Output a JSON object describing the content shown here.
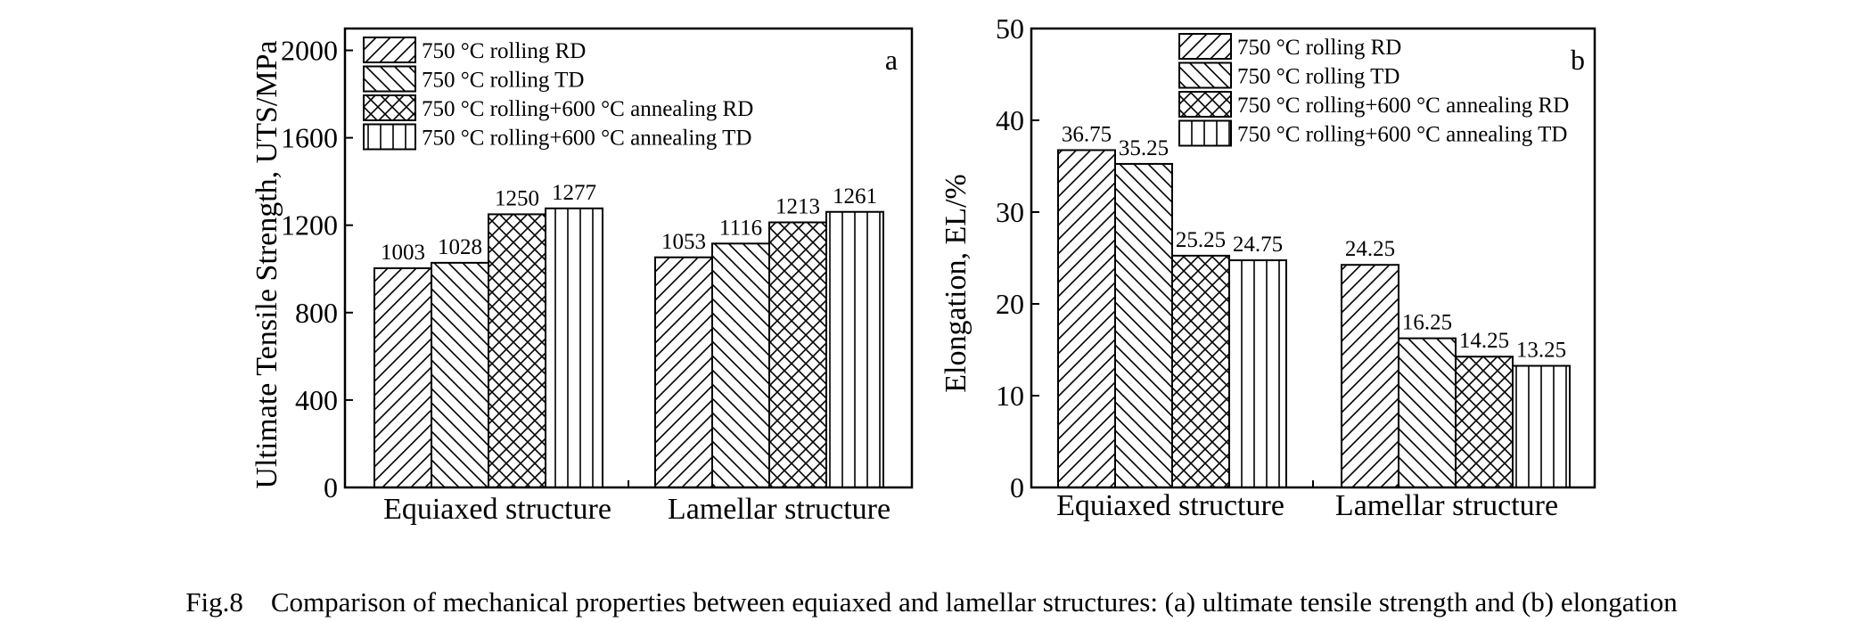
{
  "caption": "Fig.8    Comparison of mechanical properties between equiaxed and lamellar structures: (a) ultimate tensile strength and (b) elongation",
  "chart_data": [
    {
      "type": "bar",
      "panel_label": "a",
      "ylabel": "Ultimate Tensile Strength, UTS/MPa",
      "xlabel": "",
      "categories": [
        "Equiaxed structure",
        "Lamellar structure"
      ],
      "ylim": [
        0,
        2100
      ],
      "yticks": [
        0,
        400,
        800,
        1200,
        1600,
        2000
      ],
      "legend_position": "top-left",
      "grid": false,
      "series": [
        {
          "name": "750 °C rolling RD",
          "pattern": "diag-right",
          "values": [
            1003,
            1053
          ]
        },
        {
          "name": "750 °C rolling TD",
          "pattern": "diag-left",
          "values": [
            1028,
            1116
          ]
        },
        {
          "name": "750 °C rolling+600 °C annealing RD",
          "pattern": "cross",
          "values": [
            1250,
            1213
          ]
        },
        {
          "name": "750 °C rolling+600 °C annealing TD",
          "pattern": "vertical",
          "values": [
            1277,
            1261
          ]
        }
      ]
    },
    {
      "type": "bar",
      "panel_label": "b",
      "ylabel": "Elongation, EL/%",
      "xlabel": "",
      "categories": [
        "Equiaxed  structure",
        "Lamellar  structure"
      ],
      "ylim": [
        0,
        50
      ],
      "yticks": [
        0,
        10,
        20,
        30,
        40,
        50
      ],
      "legend_position": "top-center",
      "grid": false,
      "series": [
        {
          "name": "750 °C rolling RD",
          "pattern": "diag-right",
          "values": [
            36.75,
            24.25
          ]
        },
        {
          "name": "750 °C rolling TD",
          "pattern": "diag-left",
          "values": [
            35.25,
            16.25
          ]
        },
        {
          "name": "750 °C rolling+600 °C annealing RD",
          "pattern": "cross",
          "values": [
            25.25,
            14.25
          ]
        },
        {
          "name": "750 °C rolling+600 °C annealing TD",
          "pattern": "vertical",
          "values": [
            24.75,
            13.25
          ]
        }
      ]
    }
  ]
}
